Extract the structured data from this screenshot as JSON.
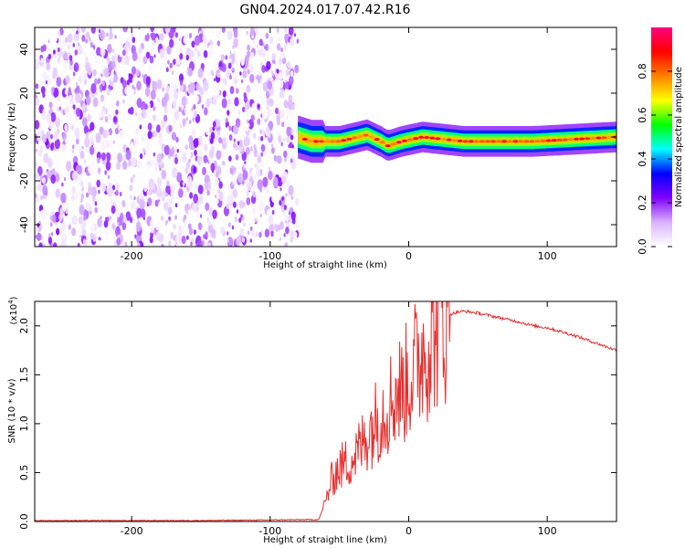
{
  "title": "GN04.2024.017.07.42.R16",
  "chart_data": [
    {
      "type": "heatmap",
      "xlabel": "Height of straight line (km)",
      "ylabel": "Frequency (Hz)",
      "xlim": [
        -270,
        150
      ],
      "ylim": [
        -50,
        50
      ],
      "xticks": [
        -200,
        -100,
        0,
        100
      ],
      "yticks": [
        -40,
        -20,
        0,
        20,
        40
      ],
      "colorbar": {
        "label": "Normalized spectral amplitude",
        "range": [
          0,
          1
        ],
        "ticks": [
          0.0,
          0.2,
          0.4,
          0.6,
          0.8
        ],
        "colors": [
          "#ffffff",
          "#d9b3ff",
          "#8000ff",
          "#0000ff",
          "#00ffff",
          "#00ff00",
          "#ffff00",
          "#ff8000",
          "#ff0000",
          "#ff0080"
        ]
      },
      "series": [
        {
          "description": "scattered low-amplitude speckle noise spanning all frequencies",
          "x_range": [
            -270,
            -80
          ],
          "y_range": [
            -50,
            50
          ]
        },
        {
          "description": "narrow band near 0 Hz with localized peaks",
          "x_range": [
            -80,
            150
          ],
          "center_y": [
            [
              -80,
              0
            ],
            [
              -70,
              -2
            ],
            [
              -50,
              -2
            ],
            [
              -30,
              1
            ],
            [
              -20,
              -2
            ],
            [
              -15,
              -4
            ],
            [
              -5,
              -2
            ],
            [
              10,
              0
            ],
            [
              40,
              -2
            ],
            [
              90,
              -2
            ],
            [
              150,
              0
            ]
          ]
        }
      ]
    },
    {
      "type": "line",
      "xlabel": "Height of straight line (km)",
      "ylabel": "SNR (10 * v/v)",
      "y_multiplier": "(x10",
      "y_multiplier_exp": "4",
      "y_multiplier_close": ")",
      "xlim": [
        -270,
        150
      ],
      "ylim": [
        0,
        2.25
      ],
      "xticks": [
        -200,
        -100,
        0,
        100
      ],
      "yticks": [
        0.0,
        0.5,
        1.0,
        1.5,
        2.0
      ],
      "color": "#e83030",
      "series": [
        {
          "x": [
            -270,
            -150,
            -65,
            -60,
            -55,
            -50,
            -45,
            -40,
            -35,
            -30,
            -25,
            -20,
            -15,
            -10,
            -5,
            0,
            5,
            10,
            15,
            20,
            25,
            30,
            35,
            40,
            50,
            60,
            70,
            80,
            90,
            100,
            110,
            120,
            130,
            140,
            150
          ],
          "y": [
            0.01,
            0.01,
            0.02,
            0.2,
            0.45,
            0.55,
            0.6,
            0.65,
            0.75,
            0.9,
            1.0,
            1.1,
            1.2,
            1.3,
            1.35,
            1.45,
            1.6,
            1.75,
            1.85,
            2.0,
            2.08,
            2.12,
            2.14,
            2.15,
            2.13,
            2.1,
            2.07,
            2.04,
            2.0,
            1.98,
            1.94,
            1.9,
            1.85,
            1.8,
            1.75
          ]
        }
      ]
    }
  ]
}
